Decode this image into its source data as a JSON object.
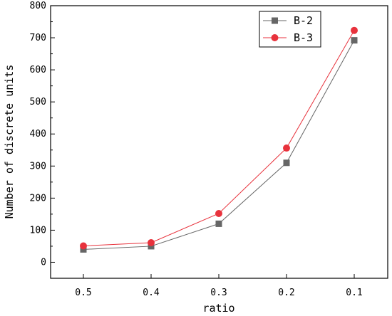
{
  "chart_data": {
    "type": "line",
    "title": "",
    "xlabel": "ratio",
    "ylabel": "Number of discrete units",
    "categories": [
      "0.5",
      "0.4",
      "0.3",
      "0.2",
      "0.1"
    ],
    "ylim": [
      -50,
      800
    ],
    "yticks": [
      0,
      100,
      200,
      300,
      400,
      500,
      600,
      700,
      800
    ],
    "grid": false,
    "legend_position": "top-right",
    "series": [
      {
        "name": "B-2",
        "marker": "square",
        "color": "#666666",
        "values": [
          40,
          50,
          120,
          310,
          692
        ]
      },
      {
        "name": "B-3",
        "marker": "circle",
        "color": "#e8323c",
        "values": [
          51,
          61,
          152,
          356,
          723
        ]
      }
    ]
  }
}
